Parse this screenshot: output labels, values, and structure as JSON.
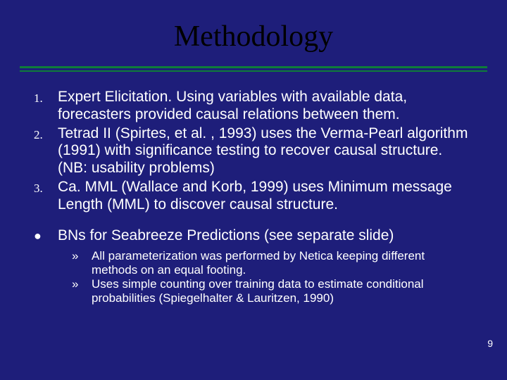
{
  "colors": {
    "background": "#1e1e7a",
    "title": "#000000",
    "divider": "#0f7c3a",
    "body_text": "#ffffff",
    "body_text_default": "#000000",
    "pagenum": "#ffffff"
  },
  "title": "Methodology",
  "numbered": [
    {
      "n": "1.",
      "text": "Expert Elicitation. Using variables with available data, forecasters provided causal relations between them."
    },
    {
      "n": "2.",
      "text": "Tetrad II (Spirtes, et al. , 1993) uses the Verma-Pearl algorithm (1991) with significance testing to recover causal structure. (NB: usability problems)"
    },
    {
      "n": "3.",
      "text": "Ca. MML (Wallace and Korb, 1999) uses Minimum message Length (MML) to discover causal structure."
    }
  ],
  "bullet": {
    "text": "BNs for Seabreeze Predictions (see separate slide)",
    "sub": [
      {
        "m": "»",
        "text": "All parameterization was performed by Netica keeping different methods on an equal footing."
      },
      {
        "m": "»",
        "text": "Uses simple counting over training data to estimate conditional probabilities (Spiegelhalter & Lauritzen, 1990)"
      }
    ]
  },
  "pagenum": "9"
}
